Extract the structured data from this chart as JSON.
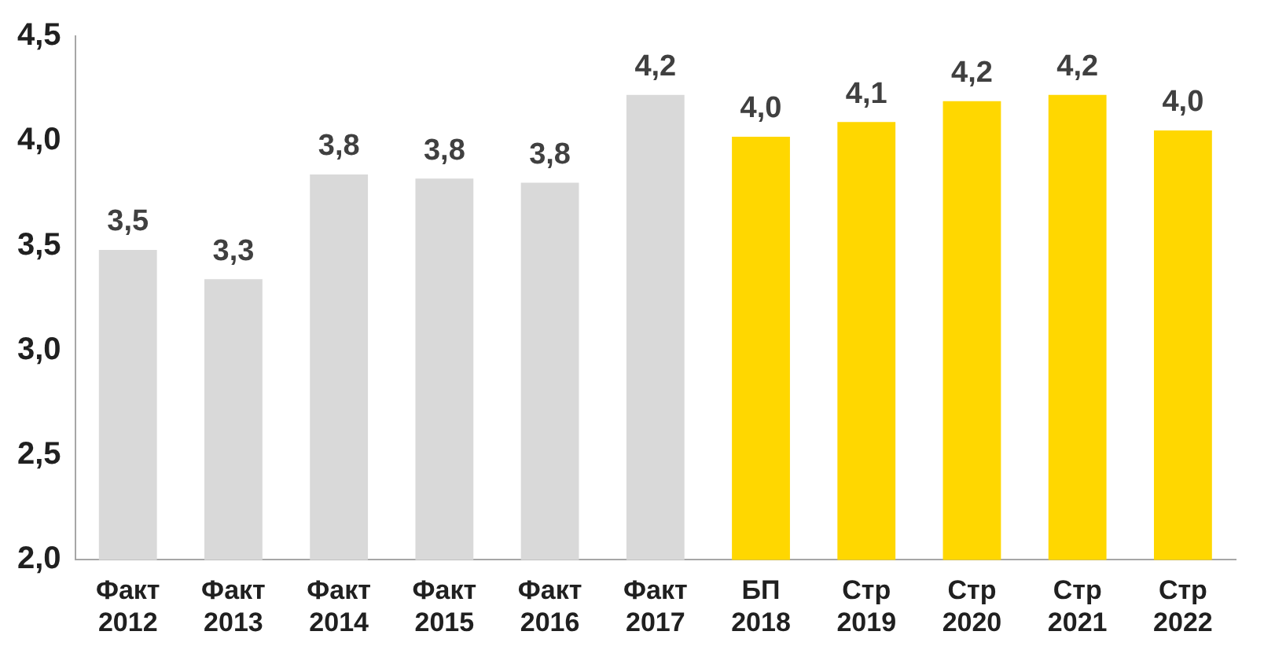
{
  "chart_data": {
    "type": "bar",
    "categories": [
      "Факт 2012",
      "Факт 2013",
      "Факт 2014",
      "Факт 2015",
      "Факт 2016",
      "Факт 2017",
      "БП 2018",
      "Стр 2019",
      "Стр 2020",
      "Стр 2021",
      "Стр 2022"
    ],
    "values": [
      3.48,
      3.34,
      3.84,
      3.82,
      3.8,
      4.22,
      4.02,
      4.09,
      4.19,
      4.22,
      4.05
    ],
    "colors": [
      "#d9d9d9",
      "#d9d9d9",
      "#d9d9d9",
      "#d9d9d9",
      "#d9d9d9",
      "#d9d9d9",
      "#ffd700",
      "#ffd700",
      "#ffd700",
      "#ffd700",
      "#ffd700"
    ],
    "value_labels": [
      "3,5",
      "3,3",
      "3,8",
      "3,8",
      "3,8",
      "4,2",
      "4,0",
      "4,1",
      "4,2",
      "4,2",
      "4,0"
    ],
    "ylim": [
      2,
      4.5
    ],
    "yticks": [
      {
        "value": 2,
        "label": "2,0"
      },
      {
        "value": 2.5,
        "label": "2,5"
      },
      {
        "value": 3,
        "label": "3,0"
      },
      {
        "value": 3.5,
        "label": "3,5"
      },
      {
        "value": 4,
        "label": "4,0"
      },
      {
        "value": 4.5,
        "label": "4,5"
      }
    ],
    "grid": false,
    "legend": false
  }
}
